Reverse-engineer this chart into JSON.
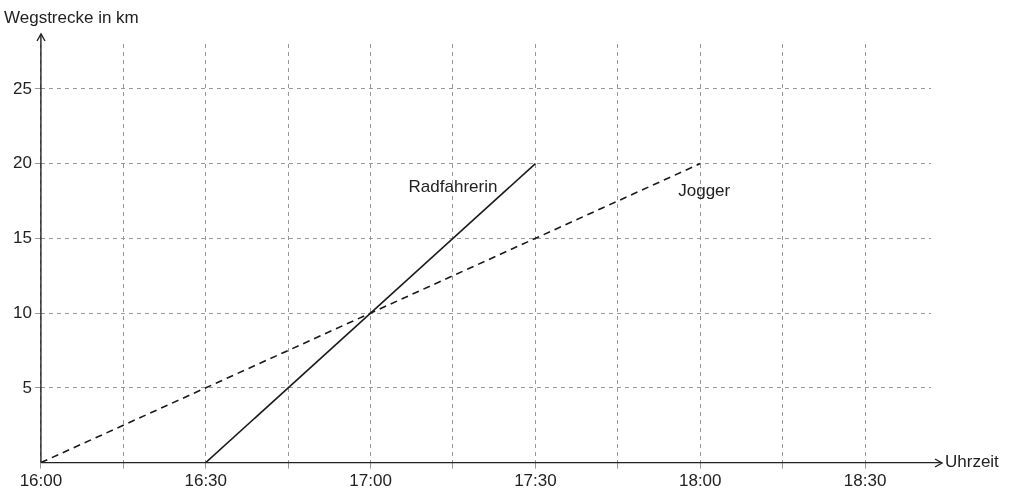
{
  "chart_data": {
    "type": "line",
    "xlabel": "Uhrzeit",
    "ylabel": "Wegstrecke in km",
    "series": [
      {
        "name": "Radfahrerin",
        "color": "#1a1a1a",
        "line_style": "solid",
        "x": [
          16.5,
          17.5
        ],
        "values": [
          0,
          20
        ]
      },
      {
        "name": "Jogger",
        "color": "#1a1a1a",
        "line_style": "dashed",
        "x": [
          16,
          18
        ],
        "values": [
          0,
          20
        ]
      }
    ],
    "xlim": [
      16,
      18.7
    ],
    "ylim": [
      0,
      28
    ],
    "xticks": [
      {
        "value": 16,
        "label": "16:00"
      },
      {
        "value": 16.25,
        "label": null
      },
      {
        "value": 16.5,
        "label": "16:30"
      },
      {
        "value": 16.75,
        "label": null
      },
      {
        "value": 17,
        "label": "17:00"
      },
      {
        "value": 17.25,
        "label": null
      },
      {
        "value": 17.5,
        "label": "17:30"
      },
      {
        "value": 17.75,
        "label": null
      },
      {
        "value": 18,
        "label": "18:00"
      },
      {
        "value": 18.25,
        "label": null
      },
      {
        "value": 18.5,
        "label": "18:30"
      }
    ],
    "yticks": [
      5,
      10,
      15,
      20,
      25
    ],
    "grid": true,
    "legend": false,
    "marker": "none"
  }
}
